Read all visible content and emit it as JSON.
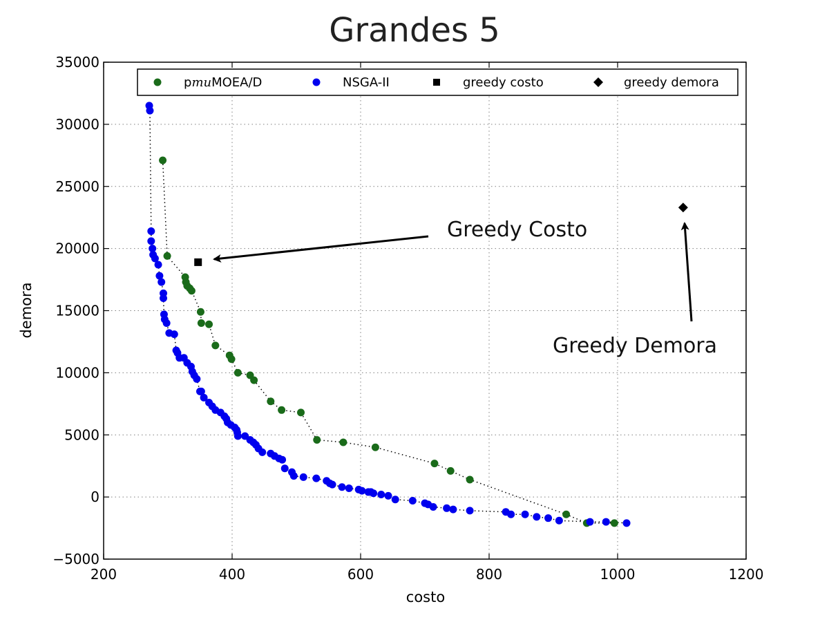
{
  "chart_data": {
    "type": "scatter",
    "title": "Grandes 5",
    "xlabel": "costo",
    "ylabel": "demora",
    "xlim": [
      200,
      1200
    ],
    "ylim": [
      -5000,
      35000
    ],
    "xticks": [
      200,
      400,
      600,
      800,
      1000,
      1200
    ],
    "yticks": [
      -5000,
      0,
      5000,
      10000,
      15000,
      20000,
      25000,
      30000,
      35000
    ],
    "xtick_labels": [
      "200",
      "400",
      "600",
      "800",
      "1000",
      "1200"
    ],
    "ytick_labels": [
      "−5000",
      "0",
      "5000",
      "10000",
      "15000",
      "20000",
      "25000",
      "30000",
      "35000"
    ],
    "grid": true,
    "legend_position": "top",
    "series": [
      {
        "name": "pmuMOEA/D",
        "color": "#1a6b1a",
        "marker": "circle",
        "connect_dotted": true,
        "x": [
          292,
          299,
          327,
          328,
          330,
          334,
          337,
          351,
          352,
          364,
          374,
          396,
          399,
          409,
          428,
          434,
          460,
          477,
          507,
          532,
          573,
          623,
          715,
          740,
          770,
          920,
          952,
          995
        ],
        "y": [
          27100,
          19400,
          17700,
          17300,
          17000,
          16800,
          16600,
          14900,
          14000,
          13900,
          12200,
          11400,
          11100,
          10000,
          9800,
          9400,
          7700,
          7000,
          6800,
          4600,
          4400,
          4000,
          2700,
          2100,
          1400,
          -1400,
          -2100,
          -2100
        ]
      },
      {
        "name": "NSGA-II",
        "color": "#0000ee",
        "marker": "circle",
        "connect_dotted": true,
        "x": [
          271,
          272,
          274,
          274,
          276,
          277,
          280,
          285,
          287,
          290,
          293,
          293,
          294,
          295,
          298,
          302,
          310,
          313,
          315,
          318,
          325,
          330,
          336,
          338,
          341,
          345,
          350,
          352,
          356,
          364,
          369,
          374,
          382,
          388,
          391,
          393,
          398,
          404,
          407,
          408,
          409,
          420,
          428,
          433,
          437,
          441,
          447,
          460,
          466,
          473,
          478,
          482,
          493,
          496,
          511,
          531,
          547,
          552,
          556,
          571,
          582,
          597,
          602,
          612,
          616,
          620,
          632,
          643,
          654,
          681,
          700,
          705,
          713,
          734,
          744,
          770,
          826,
          834,
          856,
          874,
          892,
          909,
          957,
          982,
          1014
        ],
        "y": [
          31500,
          31100,
          21400,
          20600,
          20000,
          19500,
          19200,
          18700,
          17800,
          17300,
          16400,
          16000,
          14700,
          14300,
          14000,
          13200,
          13100,
          11800,
          11600,
          11200,
          11200,
          10800,
          10500,
          10100,
          9800,
          9500,
          8500,
          8500,
          8000,
          7600,
          7300,
          7000,
          6800,
          6500,
          6300,
          6000,
          5800,
          5600,
          5400,
          5200,
          4900,
          4900,
          4600,
          4400,
          4200,
          3900,
          3600,
          3500,
          3300,
          3100,
          3000,
          2300,
          2000,
          1700,
          1600,
          1500,
          1300,
          1100,
          1000,
          800,
          700,
          600,
          500,
          400,
          400,
          300,
          200,
          100,
          -200,
          -300,
          -500,
          -600,
          -800,
          -900,
          -1000,
          -1100,
          -1200,
          -1400,
          -1400,
          -1600,
          -1700,
          -1900,
          -2000,
          -2000,
          -2100
        ]
      },
      {
        "name": "greedy costo",
        "color": "#000000",
        "marker": "square",
        "connect_dotted": false,
        "x": [
          347
        ],
        "y": [
          18900
        ]
      },
      {
        "name": "greedy demora",
        "color": "#000000",
        "marker": "diamond",
        "connect_dotted": false,
        "x": [
          1102
        ],
        "y": [
          23300
        ]
      }
    ],
    "legend_labels": {
      "s0_prefix": "p",
      "s0_italic": "mu",
      "s0_suffix": "MOEA/D",
      "s1": "NSGA-II",
      "s2": "greedy costo",
      "s3": "greedy demora"
    },
    "annotations": [
      {
        "text": "Greedy Costo",
        "points_to": {
          "x": 347,
          "y": 18900
        }
      },
      {
        "text": "Greedy Demora",
        "points_to": {
          "x": 1102,
          "y": 23300
        }
      }
    ]
  }
}
